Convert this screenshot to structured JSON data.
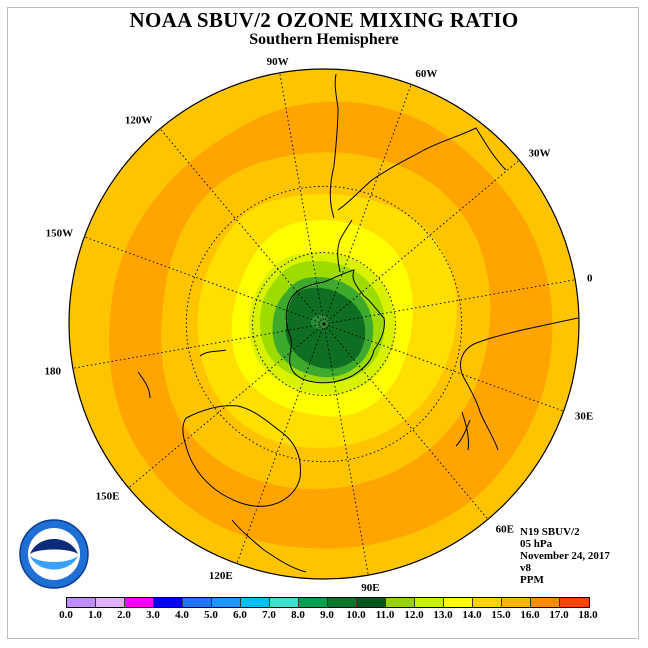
{
  "header": {
    "title": "NOAA SBUV/2 OZONE MIXING RATIO",
    "subtitle": "Southern Hemisphere"
  },
  "longitude_labels": [
    "90W",
    "60W",
    "30W",
    "0",
    "30E",
    "60E",
    "90E",
    "120E",
    "150E",
    "180",
    "150W",
    "120W"
  ],
  "info": {
    "satellite": "N19 SBUV/2",
    "level": "05 hPa",
    "date": "November 24, 2017",
    "version": "v8",
    "units": "PPM"
  },
  "logo": {
    "text": "NOAA",
    "ring_text": "NATIONAL OCEANIC AND ATMOSPHERIC ADMINISTRATION · U.S. DEPARTMENT OF COMMERCE"
  },
  "colorbar": {
    "ticks": [
      "0.0",
      "1.0",
      "2.0",
      "3.0",
      "4.0",
      "5.0",
      "6.0",
      "7.0",
      "8.0",
      "9.0",
      "10.0",
      "11.0",
      "12.0",
      "13.0",
      "14.0",
      "15.0",
      "16.0",
      "17.0",
      "18.0"
    ],
    "colors": [
      "#bf8cff",
      "#e0b0ff",
      "#ff00ff",
      "#0000ff",
      "#1e78ff",
      "#1e96ff",
      "#00bfff",
      "#40e0d0",
      "#00a050",
      "#007828",
      "#005a1e",
      "#96d200",
      "#c8f000",
      "#ffff00",
      "#ffd200",
      "#ffb400",
      "#ff8c00",
      "#ff4500",
      "#ff0000",
      "#8b4513"
    ]
  },
  "map_style": {
    "band_colors": [
      "#ffc400",
      "#ffa400",
      "#ffc400",
      "#ffde00",
      "#ffff00",
      "#d8f200",
      "#9edc00",
      "#3daa2e",
      "#0e6e22",
      "#0a5a1c"
    ],
    "coast_color": "#000000"
  }
}
